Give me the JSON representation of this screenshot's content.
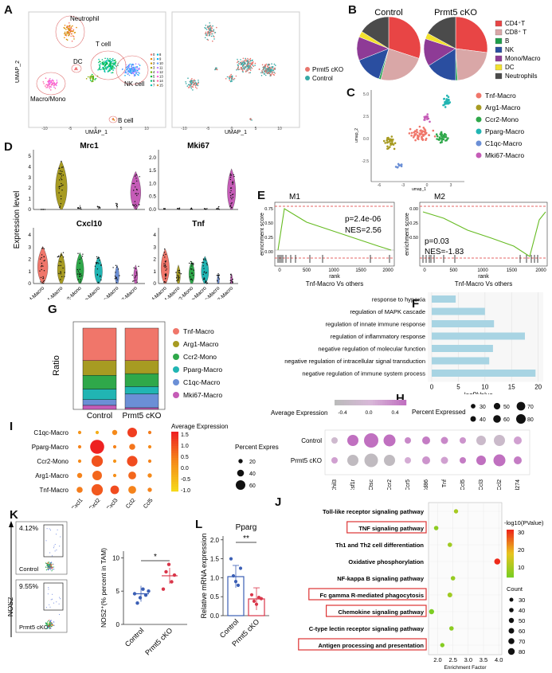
{
  "panels": {
    "A": "A",
    "B": "B",
    "C": "C",
    "D": "D",
    "E": "E",
    "F": "F",
    "G": "G",
    "H": "H",
    "I": "I",
    "J": "J",
    "K": "K",
    "L": "L"
  },
  "umap": {
    "ylabel": "UMAP_2",
    "xlabel": "UMAP_1",
    "clusters": [
      "Neutrophil",
      "DC",
      "T cell",
      "NK cell",
      "Macro/Mono",
      "B cell"
    ],
    "cluster_numbers": [
      "0",
      "1",
      "2",
      "3",
      "4",
      "5",
      "6",
      "7",
      "8",
      "9",
      "10",
      "11",
      "12",
      "13",
      "14",
      "15"
    ],
    "xticks": [
      "-10",
      "-5",
      "0",
      "5",
      "10"
    ],
    "legend": [
      "Prmt5 cKO",
      "Control"
    ],
    "colors": [
      "#e8756d",
      "#36a9a6"
    ]
  },
  "pies": {
    "titles": [
      "Control",
      "Prmt5 cKO"
    ],
    "legend": [
      "CD4⁺T",
      "CD8⁺ T",
      "B",
      "NK",
      "Mono/Macro",
      "DC",
      "Neutrophils"
    ],
    "colors": [
      "#e84545",
      "#d9a7a7",
      "#1d9e4a",
      "#2a4ea0",
      "#8e3b96",
      "#f2e12e",
      "#4b4b4b"
    ],
    "control": [
      30,
      24,
      1,
      14,
      12,
      3,
      16
    ],
    "cko": [
      27,
      22,
      1,
      16,
      14,
      3,
      17
    ]
  },
  "subumap": {
    "xlabel": "umap_1",
    "ylabel": "umap_2",
    "xticks": [
      "-6",
      "-3",
      "0",
      "3"
    ],
    "yticks": [
      "5.0",
      "2.5",
      "0.0",
      "-2.5"
    ],
    "legend": [
      "Tnf-Macro",
      "Arg1-Macro",
      "Ccr2-Mono",
      "Pparg-Macro",
      "C1qc-Macro",
      "Mki67-Macro"
    ],
    "colors": [
      "#f0766a",
      "#a79b22",
      "#2fa84a",
      "#21b5b3",
      "#6b8fd6",
      "#c55cb7"
    ]
  },
  "violin": {
    "ylabel": "Expression level",
    "genes": [
      "Mrc1",
      "Mki67",
      "Cxcl10",
      "Tnf"
    ],
    "categories": [
      "Tnf-Macro",
      "Arg1-Macro",
      "Ccr2-Mono",
      "Pparg-Macro",
      "C1qc-Macro",
      "Mki67-Macro"
    ],
    "yticks": [
      [
        "0",
        "1",
        "2",
        "3",
        "4",
        "5"
      ],
      [
        "0.0",
        "0.5",
        "1.0",
        "1.5",
        "2.0"
      ],
      [
        "0",
        "1",
        "2",
        "3",
        "4"
      ],
      [
        "0",
        "1",
        "2",
        "3",
        "4"
      ]
    ]
  },
  "gsea": {
    "titles": [
      "M1",
      "M2"
    ],
    "ylabel": "enrichment score",
    "xlabel": "rank",
    "caption": "Tnf-Macro Vs others",
    "m1_stats": [
      "p=2.4e-06",
      "NES=2.56"
    ],
    "m2_stats": [
      "p=0.03",
      "NES=-1.83"
    ],
    "m1_yticks": [
      "0.75",
      "0.50",
      "0.25",
      "0.00"
    ],
    "m2_yticks": [
      "0.00",
      "-0.25",
      "-0.50"
    ],
    "xticks": [
      "0",
      "500",
      "1000",
      "1500",
      "2000"
    ]
  },
  "chart_data": [
    {
      "type": "bar",
      "id": "F",
      "categories": [
        "response to hypoxia",
        "regulation of MAPK cascade",
        "regulation of innate immune response",
        "regulation of inflammatory response",
        "negative regulation of molecular function",
        "negative regulation of intracellular signal transduction",
        "negative regulation of immune system process"
      ],
      "values": [
        4.5,
        10,
        11.7,
        17.5,
        11.5,
        10.8,
        19.5
      ],
      "xlabel": "-logPValue",
      "xticks": [
        "0",
        "5",
        "10",
        "15",
        "20"
      ],
      "xlim": [
        0,
        20.5
      ]
    },
    {
      "type": "bar",
      "id": "G",
      "stacked": true,
      "categories": [
        "Control",
        "Prmt5 cKO"
      ],
      "series": [
        {
          "name": "Mki67-Macro",
          "values": [
            0.05,
            0.02
          ]
        },
        {
          "name": "C1qc-Macro",
          "values": [
            0.07,
            0.17
          ]
        },
        {
          "name": "Pparg-Macro",
          "values": [
            0.13,
            0.09
          ]
        },
        {
          "name": "Ccr2-Mono",
          "values": [
            0.17,
            0.16
          ]
        },
        {
          "name": "Arg1-Macro",
          "values": [
            0.18,
            0.16
          ]
        },
        {
          "name": "Tnf-Macro",
          "values": [
            0.4,
            0.4
          ]
        }
      ],
      "ylabel": "Ratio"
    },
    {
      "type": "dot",
      "id": "I",
      "rows": [
        "C1qc-Macro",
        "Pparg-Macro",
        "Ccr2-Mono",
        "Arg1-Macro",
        "Tnf-Macro"
      ],
      "cols": [
        "Cxcl1",
        "Cxcl2",
        "Cxcl3",
        "Ccl2",
        "Ccl5"
      ],
      "values": [
        [
          0.3,
          -0.2,
          0.5,
          1.6,
          0.7
        ],
        [
          0.6,
          2.1,
          0.6,
          0.8,
          0.5
        ],
        [
          0.5,
          1.3,
          0.3,
          1.4,
          0.6
        ],
        [
          0.6,
          1.0,
          0.4,
          1.0,
          0.5
        ],
        [
          0.7,
          1.2,
          1.4,
          0.6,
          0.6
        ]
      ],
      "sizes": [
        [
          10,
          10,
          20,
          45,
          10
        ],
        [
          10,
          70,
          10,
          25,
          10
        ],
        [
          10,
          55,
          10,
          50,
          10
        ],
        [
          20,
          45,
          10,
          35,
          15
        ],
        [
          25,
          55,
          40,
          35,
          15
        ]
      ],
      "legend_title": "Average Expression",
      "colorbar_ticks": [
        "1.5",
        "1.0",
        "0.5",
        "0.0",
        "-0.5",
        "-1.0"
      ],
      "size_title": "Percent Expressed",
      "size_ticks": [
        "20",
        "40",
        "60"
      ]
    },
    {
      "type": "dot",
      "id": "H",
      "rows": [
        "Control",
        "Prmt5 cKO"
      ],
      "cols": [
        "Chil3",
        "Csf1r",
        "Ctsc",
        "Ccr2",
        "Ccr5",
        "Cd86",
        "Tnf",
        "Ccl5",
        "Ccl3",
        "Ccl2",
        "Cd274"
      ],
      "values": [
        [
          -0.2,
          0.6,
          0.6,
          0.6,
          0.4,
          0.5,
          0.4,
          0.3,
          -0.3,
          -0.3,
          0.2
        ],
        [
          0.2,
          -0.5,
          -0.5,
          -0.5,
          0.1,
          0.3,
          0.2,
          0.5,
          0.6,
          0.6,
          0.5
        ]
      ],
      "sizes": [
        [
          30,
          60,
          80,
          65,
          30,
          40,
          35,
          30,
          50,
          60,
          40
        ],
        [
          30,
          60,
          75,
          60,
          30,
          40,
          35,
          30,
          50,
          65,
          40
        ]
      ],
      "legend_title": "Average Expression",
      "colorbar_ticks": [
        "-0.4",
        "0.0",
        "0.4"
      ],
      "size_title": "Percent Expressed",
      "size_ticks": [
        "30",
        "40",
        "50",
        "60",
        "70",
        "80"
      ]
    },
    {
      "type": "scatter",
      "id": "J",
      "categories": [
        "Toll-like receptor signaling pathway",
        "TNF signaling pathway",
        "Th1 and Th2 cell differentiation",
        "Oxidative phosphorylation",
        "NF-kappa B signaling pathway",
        "Fc gamma R-mediated phagocytosis",
        "Chemokine signaling pathway",
        "C-type lectin receptor signaling pathway",
        "Antigen processing and presentation"
      ],
      "x": [
        2.6,
        1.95,
        2.4,
        3.95,
        2.5,
        2.4,
        1.8,
        2.45,
        2.15
      ],
      "neglog10p": [
        15,
        12,
        14,
        35,
        13,
        14,
        10,
        12,
        11
      ],
      "count": [
        35,
        40,
        38,
        70,
        40,
        45,
        50,
        38,
        35
      ],
      "highlighted": [
        false,
        true,
        false,
        false,
        false,
        true,
        true,
        false,
        true
      ],
      "xlabel": "Enrichment Factor",
      "xticks": [
        "2.0",
        "2.5",
        "3.0",
        "3.5",
        "4.0"
      ],
      "xlim": [
        1.7,
        4.1
      ],
      "color_title": "-log10(PValue)",
      "color_ticks": [
        "30",
        "20",
        "10"
      ],
      "size_title": "Count",
      "size_ticks": [
        "30",
        "40",
        "50",
        "60",
        "70",
        "80"
      ]
    },
    {
      "type": "scatter",
      "id": "K",
      "categories": [
        "Control",
        "Prmt5 cKO"
      ],
      "series": [
        {
          "name": "Control",
          "values": [
            4.6,
            3.2,
            4.0,
            5.3,
            4.4,
            5.0
          ]
        },
        {
          "name": "Prmt5 cKO",
          "values": [
            5.3,
            7.9,
            9.0,
            6.4,
            7.4
          ]
        }
      ],
      "means": [
        4.6,
        7.3
      ],
      "ylabel": "NOS2⁺(% percent in TAM)",
      "yticks": [
        "0",
        "5",
        "10"
      ],
      "ylim": [
        0,
        11
      ],
      "sig": "*"
    },
    {
      "type": "bar",
      "id": "L",
      "title": "Pparg",
      "categories": [
        "Control",
        "Prmt5 cKO"
      ],
      "values": [
        1.03,
        0.44
      ],
      "points": [
        [
          1.5,
          1.05,
          0.9,
          0.8,
          1.25
        ],
        [
          0.55,
          0.38,
          0.3,
          0.48,
          0.45
        ]
      ],
      "ylabel": "Relative mRNA expression",
      "yticks": [
        "0.0",
        "0.5",
        "1.0",
        "1.5",
        "2.0"
      ],
      "ylim": [
        0,
        2.1
      ],
      "sig": "**"
    }
  ],
  "flow": {
    "percents": [
      "4.12%",
      "9.55%"
    ],
    "labels": [
      "Control",
      "Prmt5 cKO"
    ],
    "ylabel": "NOS2"
  },
  "colors": {
    "red_box": "#d33"
  }
}
